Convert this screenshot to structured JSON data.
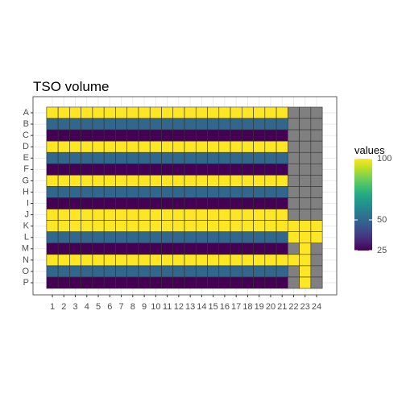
{
  "chart_data": {
    "type": "heatmap",
    "title": "TSO volume",
    "x": [
      "1",
      "2",
      "3",
      "4",
      "5",
      "6",
      "7",
      "8",
      "9",
      "10",
      "11",
      "12",
      "13",
      "14",
      "15",
      "16",
      "17",
      "18",
      "19",
      "20",
      "21",
      "22",
      "23",
      "24"
    ],
    "y": [
      "A",
      "B",
      "C",
      "D",
      "E",
      "F",
      "G",
      "H",
      "I",
      "J",
      "K",
      "L",
      "M",
      "N",
      "O",
      "P"
    ],
    "values": [
      [
        100,
        100,
        100,
        100,
        100,
        100,
        100,
        100,
        100,
        100,
        100,
        100,
        100,
        100,
        100,
        100,
        100,
        100,
        100,
        100,
        100,
        null,
        null,
        null
      ],
      [
        50,
        50,
        50,
        50,
        50,
        50,
        50,
        50,
        50,
        50,
        50,
        50,
        50,
        50,
        50,
        50,
        50,
        50,
        50,
        50,
        50,
        null,
        null,
        null
      ],
      [
        25,
        25,
        25,
        25,
        25,
        25,
        25,
        25,
        25,
        25,
        25,
        25,
        25,
        25,
        25,
        25,
        25,
        25,
        25,
        25,
        25,
        null,
        null,
        null
      ],
      [
        100,
        100,
        100,
        100,
        100,
        100,
        100,
        100,
        100,
        100,
        100,
        100,
        100,
        100,
        100,
        100,
        100,
        100,
        100,
        100,
        100,
        null,
        null,
        null
      ],
      [
        50,
        50,
        50,
        50,
        50,
        50,
        50,
        50,
        50,
        50,
        50,
        50,
        50,
        50,
        50,
        50,
        50,
        50,
        50,
        50,
        50,
        null,
        null,
        null
      ],
      [
        25,
        25,
        25,
        25,
        25,
        25,
        25,
        25,
        25,
        25,
        25,
        25,
        25,
        25,
        25,
        25,
        25,
        25,
        25,
        25,
        25,
        null,
        null,
        null
      ],
      [
        100,
        100,
        100,
        100,
        100,
        100,
        100,
        100,
        100,
        100,
        100,
        100,
        100,
        100,
        100,
        100,
        100,
        100,
        100,
        100,
        100,
        null,
        null,
        null
      ],
      [
        50,
        50,
        50,
        50,
        50,
        50,
        50,
        50,
        50,
        50,
        50,
        50,
        50,
        50,
        50,
        50,
        50,
        50,
        50,
        50,
        50,
        null,
        null,
        null
      ],
      [
        25,
        25,
        25,
        25,
        25,
        25,
        25,
        25,
        25,
        25,
        25,
        25,
        25,
        25,
        25,
        25,
        25,
        25,
        25,
        25,
        25,
        null,
        null,
        null
      ],
      [
        100,
        100,
        100,
        100,
        100,
        100,
        100,
        100,
        100,
        100,
        100,
        100,
        100,
        100,
        100,
        100,
        100,
        100,
        100,
        100,
        100,
        null,
        null,
        null
      ],
      [
        100,
        100,
        100,
        100,
        100,
        100,
        100,
        100,
        100,
        100,
        100,
        100,
        100,
        100,
        100,
        100,
        100,
        100,
        100,
        100,
        100,
        100,
        100,
        100
      ],
      [
        50,
        50,
        50,
        50,
        50,
        50,
        50,
        50,
        50,
        50,
        50,
        50,
        50,
        50,
        50,
        50,
        50,
        50,
        50,
        50,
        50,
        100,
        100,
        100
      ],
      [
        25,
        25,
        25,
        25,
        25,
        25,
        25,
        25,
        25,
        25,
        25,
        25,
        25,
        25,
        25,
        25,
        25,
        25,
        25,
        25,
        25,
        null,
        100,
        null
      ],
      [
        100,
        100,
        100,
        100,
        100,
        100,
        100,
        100,
        100,
        100,
        100,
        100,
        100,
        100,
        100,
        100,
        100,
        100,
        100,
        100,
        100,
        100,
        100,
        null
      ],
      [
        50,
        50,
        50,
        50,
        50,
        50,
        50,
        50,
        50,
        50,
        50,
        50,
        50,
        50,
        50,
        50,
        50,
        50,
        50,
        50,
        50,
        null,
        100,
        null
      ],
      [
        25,
        25,
        25,
        25,
        25,
        25,
        25,
        25,
        25,
        25,
        25,
        25,
        25,
        25,
        25,
        25,
        25,
        25,
        25,
        25,
        25,
        null,
        100,
        null
      ]
    ],
    "colorscale": "viridis",
    "na_color": "#808080",
    "legend_title": "values",
    "clim": [
      25,
      100
    ],
    "cticks": [
      25,
      50,
      100
    ],
    "grid": true
  }
}
